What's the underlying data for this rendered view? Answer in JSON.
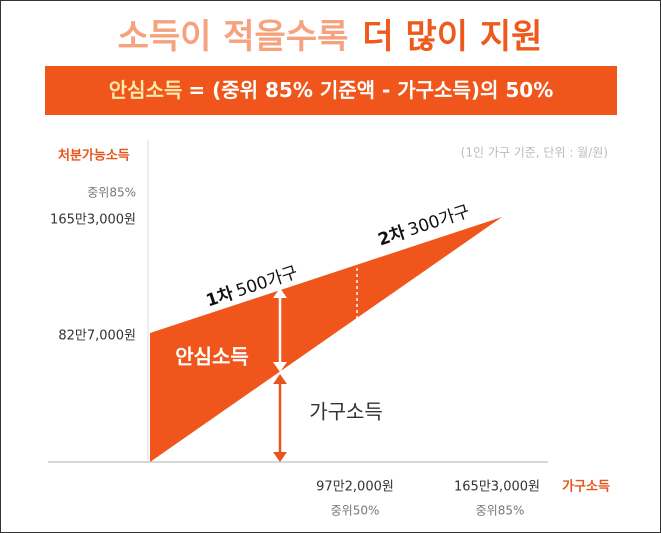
{
  "title": {
    "light": "소득이 적을수록",
    "strong": "더 많이 지원"
  },
  "formula": {
    "term": "안심소득",
    "rest": "= (중위 85% 기준액 - 가구소득)의 50%"
  },
  "note": "(1인 가구 기준, 단위 : 월/원)",
  "y_axis": {
    "label": "처분가능소득",
    "top_note": "중위85%",
    "top_value": "165만3,000원",
    "bottom_value": "82만7,000원"
  },
  "phases": [
    {
      "round": "1차",
      "households": "500가구"
    },
    {
      "round": "2차",
      "households": "300가구"
    }
  ],
  "regions": {
    "subsidy": "안심소득",
    "income": "가구소득"
  },
  "x_axis": {
    "label": "가구소득",
    "ticks": [
      {
        "value": "97만2,000원",
        "note": "중위50%"
      },
      {
        "value": "165만3,000원",
        "note": "중위85%"
      }
    ]
  }
}
